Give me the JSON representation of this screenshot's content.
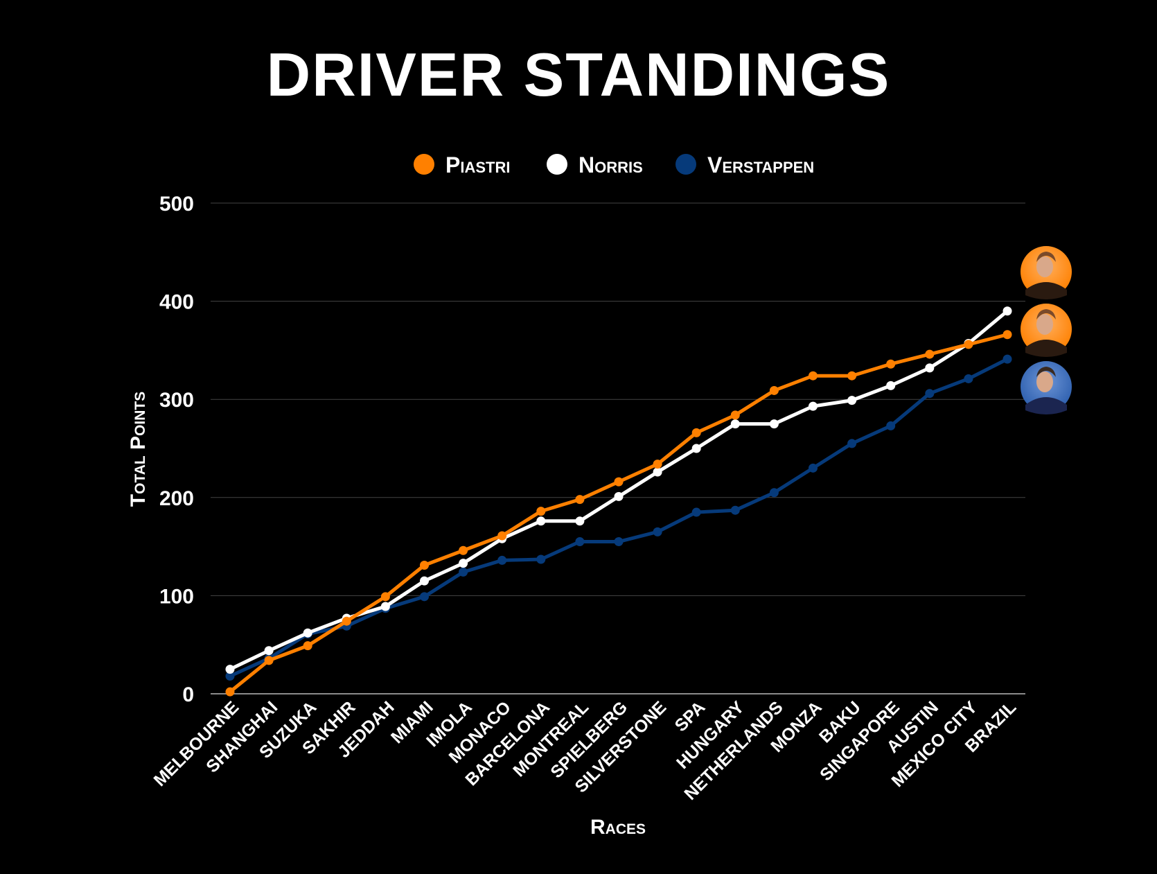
{
  "chart_data": {
    "type": "line",
    "title": "DRIVER STANDINGS",
    "xlabel": "Races",
    "ylabel": "Total Points",
    "ylim": [
      0,
      500
    ],
    "yticks": [
      0,
      100,
      200,
      300,
      400,
      500
    ],
    "grid": true,
    "legend_position": "top-center",
    "categories": [
      "Melbourne",
      "Shanghai",
      "Suzuka",
      "Sakhir",
      "Jeddah",
      "Miami",
      "Imola",
      "Monaco",
      "Barcelona",
      "Montreal",
      "Spielberg",
      "Silverstone",
      "Spa",
      "Hungary",
      "Netherlands",
      "Monza",
      "Baku",
      "Singapore",
      "Austin",
      "Mexico City",
      "Brazil"
    ],
    "series": [
      {
        "name": "Piastri",
        "color": "#ff8000",
        "values": [
          2,
          34,
          49,
          74,
          99,
          131,
          146,
          161,
          186,
          198,
          216,
          234,
          266,
          284,
          309,
          324,
          324,
          336,
          346,
          356,
          366
        ]
      },
      {
        "name": "Norris",
        "color": "#ffffff",
        "values": [
          25,
          44,
          62,
          77,
          89,
          115,
          133,
          158,
          176,
          176,
          201,
          226,
          250,
          275,
          275,
          293,
          299,
          314,
          332,
          357,
          390
        ]
      },
      {
        "name": "Verstappen",
        "color": "#063a7a",
        "values": [
          18,
          36,
          61,
          69,
          87,
          99,
          124,
          136,
          137,
          155,
          155,
          165,
          185,
          187,
          205,
          230,
          255,
          273,
          306,
          321,
          341
        ]
      }
    ],
    "avatars": [
      {
        "driver": "Norris",
        "color": "#ff8000"
      },
      {
        "driver": "Piastri",
        "color": "#ff8000"
      },
      {
        "driver": "Verstappen",
        "color": "#2d5fae"
      }
    ]
  }
}
